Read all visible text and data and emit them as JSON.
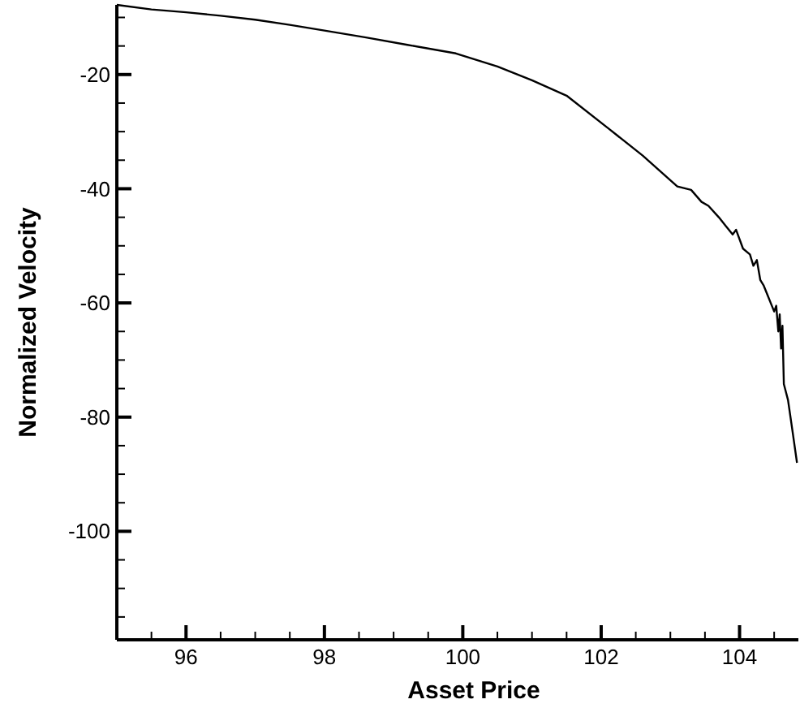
{
  "chart_data": {
    "type": "line",
    "xlabel": "Asset Price",
    "ylabel": "Normalized Velocity",
    "xlim": [
      95,
      104.85
    ],
    "ylim": [
      -119,
      -7.8
    ],
    "xticks": [
      {
        "value": 95.5,
        "label": null
      },
      96,
      {
        "value": 96.5,
        "label": null
      },
      {
        "value": 97,
        "label": null
      },
      {
        "value": 97.5,
        "label": null
      },
      98,
      {
        "value": 98.5,
        "label": null
      },
      {
        "value": 99,
        "label": null
      },
      {
        "value": 99.5,
        "label": null
      },
      100,
      {
        "value": 100.5,
        "label": null
      },
      {
        "value": 101,
        "label": null
      },
      {
        "value": 101.5,
        "label": null
      },
      102,
      {
        "value": 102.5,
        "label": null
      },
      {
        "value": 103,
        "label": null
      },
      {
        "value": 103.5,
        "label": null
      },
      104,
      {
        "value": 104.5,
        "label": null
      }
    ],
    "yticks": [
      {
        "value": -115,
        "label": null
      },
      {
        "value": -110,
        "label": null
      },
      {
        "value": -105,
        "label": null
      },
      -100,
      {
        "value": -95,
        "label": null
      },
      {
        "value": -90,
        "label": null
      },
      {
        "value": -85,
        "label": null
      },
      -80,
      {
        "value": -75,
        "label": null
      },
      {
        "value": -70,
        "label": null
      },
      {
        "value": -65,
        "label": null
      },
      -60,
      {
        "value": -55,
        "label": null
      },
      {
        "value": -50,
        "label": null
      },
      {
        "value": -45,
        "label": null
      },
      -40,
      {
        "value": -35,
        "label": null
      },
      {
        "value": -30,
        "label": null
      },
      {
        "value": -25,
        "label": null
      },
      -20,
      {
        "value": -15,
        "label": null
      },
      {
        "value": -10,
        "label": null
      }
    ],
    "grid": false,
    "marker": "none",
    "line_style": "solid",
    "series": [
      {
        "color": "#000000",
        "x": [
          95,
          95.5,
          96,
          96.5,
          97,
          97.5,
          98,
          98.6,
          99.2,
          99.9,
          100.5,
          101,
          101.5,
          102.1,
          102.6,
          103.1,
          103.3,
          103.45,
          103.55,
          103.7,
          103.8,
          103.9,
          103.95,
          104.05,
          104.15,
          104.2,
          104.25,
          104.3,
          104.35,
          104.4,
          104.45,
          104.5,
          104.53,
          104.56,
          104.58,
          104.6,
          104.62,
          104.64,
          104.7,
          104.76,
          104.83
        ],
        "values": [
          -7.8,
          -8.6,
          -9.1,
          -9.7,
          -10.4,
          -11.3,
          -12.3,
          -13.5,
          -14.8,
          -16.3,
          -18.6,
          -21,
          -23.7,
          -29.4,
          -34.2,
          -39.6,
          -40.2,
          -42.3,
          -43,
          -45,
          -46.5,
          -48,
          -47.2,
          -50.5,
          -51.5,
          -53.5,
          -52.5,
          -56,
          -57,
          -58.5,
          -60,
          -61.5,
          -60.5,
          -65,
          -62,
          -68,
          -64,
          -74.2,
          -77,
          -82,
          -88
        ]
      }
    ]
  }
}
